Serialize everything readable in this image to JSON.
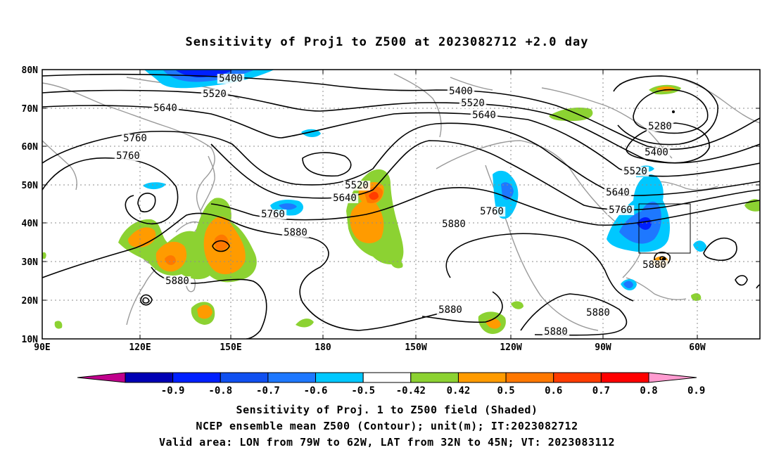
{
  "title": "Sensitivity of Proj1 to Z500 at 2023082712 +2.0 day",
  "map": {
    "lat_labels": [
      "80N",
      "70N",
      "60N",
      "50N",
      "40N",
      "30N",
      "20N",
      "10N"
    ],
    "lon_labels": [
      "90E",
      "120E",
      "150E",
      "180",
      "150W",
      "120W",
      "90W",
      "60W"
    ],
    "lon_range": [
      90,
      310
    ],
    "lat_range": [
      10,
      80
    ],
    "grid": true,
    "contour_labels": [
      "5400",
      "5520",
      "5640",
      "5760",
      "5760",
      "5880",
      "5880",
      "5400",
      "5520",
      "5640",
      "5760",
      "5880",
      "5280",
      "5400",
      "5520",
      "5640",
      "5760",
      "5520",
      "5640",
      "5760",
      "5880",
      "5880",
      "5880",
      "5880"
    ],
    "valid_box": {
      "lon": [
        281,
        298
      ],
      "lat": [
        32,
        45
      ]
    }
  },
  "colorbar": {
    "labels": [
      "-0.9",
      "-0.8",
      "-0.7",
      "-0.6",
      "-0.5",
      "-0.42",
      "0.42",
      "0.5",
      "0.6",
      "0.7",
      "0.8",
      "0.9"
    ],
    "colors": [
      "#c0008c",
      "#0000b4",
      "#0020ff",
      "#1050f0",
      "#1e78ff",
      "#00c8ff",
      "#ffffff",
      "#8cd232",
      "#ff9b00",
      "#ff7800",
      "#ff3c00",
      "#ff0000",
      "#ff9bd0"
    ]
  },
  "caption": {
    "line1": "Sensitivity of Proj. 1 to Z500 field (Shaded)",
    "line2": "NCEP ensemble mean Z500 (Contour); unit(m); IT:2023082712",
    "line3": "Valid area: LON from 79W to 62W, LAT from 32N to 45N; VT: 2023083112"
  }
}
